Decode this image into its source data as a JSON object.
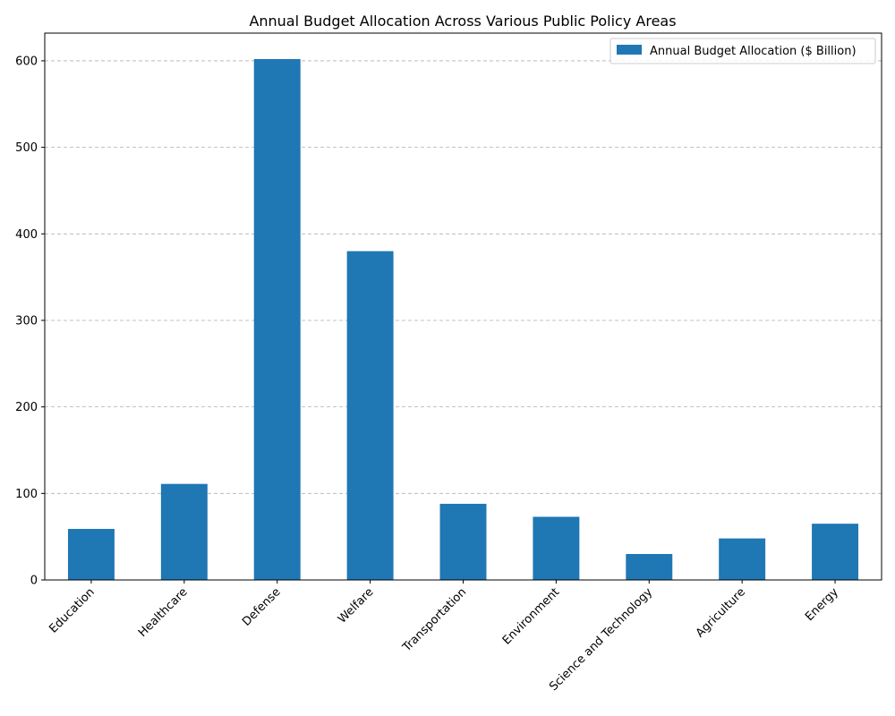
{
  "chart_data": {
    "type": "bar",
    "title": "Annual Budget Allocation Across Various Public Policy Areas",
    "xlabel": "",
    "ylabel": "",
    "categories": [
      "Education",
      "Healthcare",
      "Defense",
      "Welfare",
      "Transportation",
      "Environment",
      "Science and Technology",
      "Agriculture",
      "Energy"
    ],
    "series": [
      {
        "name": "Annual Budget Allocation ($ Billion)",
        "values": [
          59,
          111,
          602,
          380,
          88,
          73,
          30,
          48,
          65
        ],
        "color": "#1f77b4"
      }
    ],
    "ylim": [
      0,
      632
    ],
    "yticks": [
      0,
      100,
      200,
      300,
      400,
      500,
      600
    ],
    "grid": "y-dashed",
    "legend_position": "top-right"
  }
}
